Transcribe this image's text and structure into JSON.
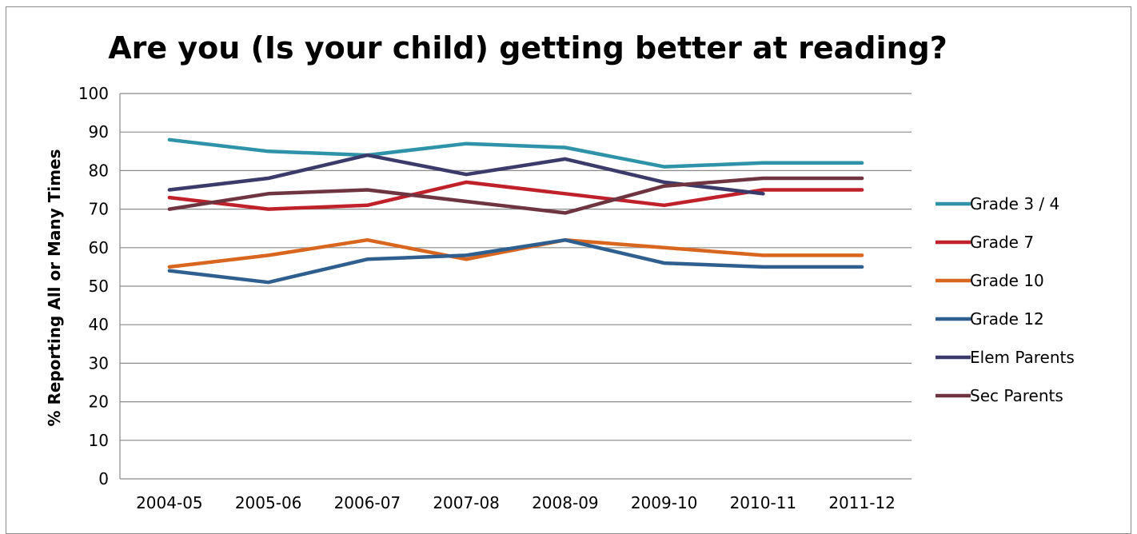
{
  "chart_data": {
    "type": "line",
    "title": "Are you (Is your child) getting better at reading?",
    "xlabel": "",
    "ylabel": "% Reporting All or Many Times",
    "ylim": [
      0,
      100
    ],
    "yticks": [
      "0",
      "10",
      "20",
      "30",
      "40",
      "50",
      "60",
      "70",
      "80",
      "90",
      "100"
    ],
    "grid": true,
    "legend_position": "right",
    "categories": [
      "2004-05",
      "2005-06",
      "2006-07",
      "2007-08",
      "2008-09",
      "2009-10",
      "2010-11",
      "2011-12"
    ],
    "series": [
      {
        "name": "Grade 3 / 4",
        "color": "#2E93A8",
        "values": [
          88,
          85,
          84,
          87,
          86,
          81,
          82,
          82
        ]
      },
      {
        "name": "Grade 7",
        "color": "#C0202A",
        "values": [
          73,
          70,
          71,
          77,
          74,
          71,
          75,
          75
        ]
      },
      {
        "name": "Grade 10",
        "color": "#D9661F",
        "values": [
          55,
          58,
          62,
          57,
          62,
          60,
          58,
          58
        ]
      },
      {
        "name": "Grade 12",
        "color": "#2F5F8E",
        "values": [
          54,
          51,
          57,
          58,
          62,
          56,
          55,
          55
        ]
      },
      {
        "name": "Elem Parents",
        "color": "#3B3B6B",
        "values": [
          75,
          78,
          84,
          79,
          83,
          77,
          74,
          null
        ]
      },
      {
        "name": "Sec Parents",
        "color": "#6E3540",
        "values": [
          70,
          74,
          75,
          72,
          69,
          76,
          78,
          78
        ]
      }
    ]
  }
}
